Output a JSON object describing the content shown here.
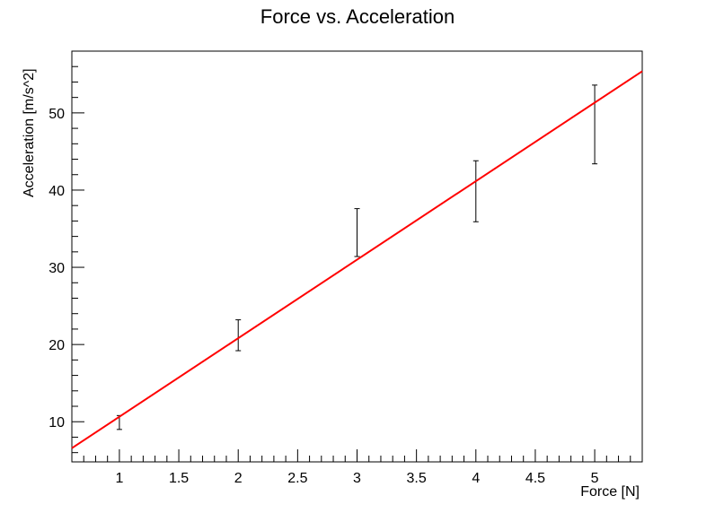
{
  "chart_data": {
    "type": "scatter",
    "title": "Force vs. Acceleration",
    "xlabel": "Force [N]",
    "ylabel": "Acceleration [m/s^2]",
    "xlim": [
      0.6,
      5.4
    ],
    "ylim": [
      4.8,
      58
    ],
    "x_ticks": [
      "1",
      "1.5",
      "2",
      "2.5",
      "3",
      "3.5",
      "4",
      "4.5",
      "5"
    ],
    "y_ticks": [
      "10",
      "20",
      "30",
      "40",
      "50"
    ],
    "grid": false,
    "series": [
      {
        "kind": "errorbar-points",
        "color": "#000000",
        "points": [
          {
            "x": 1,
            "y": 10.0,
            "ylow": 9.0,
            "yhigh": 10.8
          },
          {
            "x": 2,
            "y": 21.2,
            "ylow": 19.2,
            "yhigh": 23.2
          },
          {
            "x": 3,
            "y": 34.5,
            "ylow": 31.4,
            "yhigh": 37.6
          },
          {
            "x": 4,
            "y": 39.8,
            "ylow": 35.9,
            "yhigh": 43.8
          },
          {
            "x": 5,
            "y": 48.5,
            "ylow": 43.4,
            "yhigh": 53.6
          }
        ]
      },
      {
        "kind": "fit-line",
        "color": "#ff0000",
        "slope": 10.17,
        "intercept": 0.48
      }
    ]
  }
}
